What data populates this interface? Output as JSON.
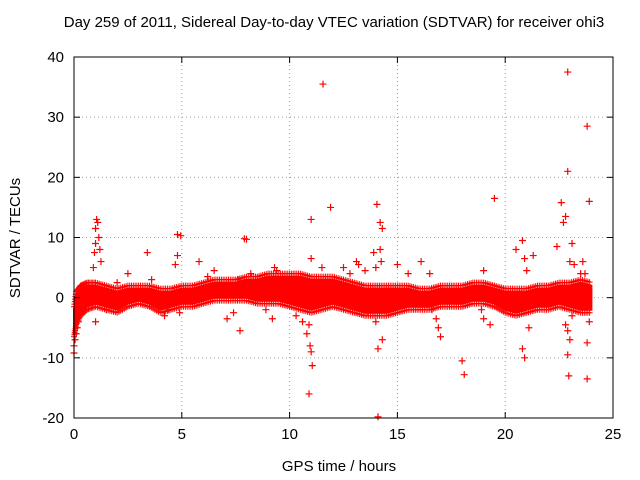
{
  "colors": {
    "series": "#ff0000",
    "axis": "#000000",
    "grid": "#a0a0a0",
    "background": "#ffffff"
  },
  "chart_data": {
    "type": "scatter",
    "title": "Day 259 of 2011, Sidereal Day-to-day VTEC variation (SDTVAR) for receiver ohi3",
    "xlabel": "GPS time / hours",
    "ylabel": "SDTVAR / TECUs",
    "xlim": [
      0,
      25
    ],
    "ylim": [
      -20,
      40
    ],
    "xticks": [
      0,
      5,
      10,
      15,
      20,
      25
    ],
    "yticks": [
      -20,
      -10,
      0,
      10,
      20,
      30,
      40
    ],
    "grid": true,
    "marker": "+",
    "series": [
      {
        "name": "SDTVAR",
        "band": {
          "x": [
            0.0,
            0.1,
            0.3,
            0.6,
            1.0,
            1.5,
            2.0,
            2.5,
            3.0,
            3.5,
            4.0,
            4.5,
            5.0,
            5.5,
            6.0,
            6.5,
            7.0,
            7.5,
            8.0,
            8.5,
            9.0,
            9.5,
            10.0,
            10.5,
            11.0,
            11.5,
            12.0,
            12.5,
            13.0,
            13.5,
            14.0,
            14.5,
            15.0,
            15.5,
            16.0,
            16.5,
            17.0,
            17.5,
            18.0,
            18.5,
            19.0,
            19.5,
            20.0,
            20.5,
            21.0,
            21.5,
            22.0,
            22.5,
            23.0,
            23.5,
            24.0
          ],
          "lower": [
            -6.0,
            -4.0,
            -2.5,
            -1.5,
            -1.0,
            -1.5,
            -2.0,
            -1.0,
            -0.5,
            -1.0,
            -2.0,
            -1.5,
            -1.0,
            -1.0,
            -0.5,
            0.0,
            0.0,
            0.0,
            0.0,
            -0.5,
            -0.5,
            -0.5,
            -1.0,
            -1.5,
            -2.0,
            -1.5,
            -1.0,
            -1.5,
            -2.0,
            -2.5,
            -2.5,
            -2.5,
            -2.0,
            -1.5,
            -1.5,
            -1.5,
            -1.0,
            -1.0,
            -1.0,
            -0.5,
            -0.5,
            -1.0,
            -2.0,
            -2.5,
            -2.0,
            -1.5,
            -1.5,
            -1.0,
            -1.5,
            -2.0,
            -2.0
          ],
          "upper": [
            -2.0,
            0.5,
            1.5,
            2.0,
            2.0,
            1.5,
            1.0,
            1.5,
            1.5,
            1.5,
            1.0,
            1.0,
            1.5,
            1.5,
            2.0,
            2.5,
            2.5,
            2.5,
            3.0,
            3.0,
            3.5,
            3.5,
            3.5,
            3.5,
            3.0,
            3.0,
            3.0,
            2.5,
            2.0,
            1.5,
            1.5,
            1.5,
            1.5,
            1.5,
            1.0,
            1.0,
            1.5,
            1.5,
            1.5,
            2.0,
            2.0,
            1.5,
            1.0,
            1.0,
            1.0,
            1.5,
            1.5,
            2.0,
            2.0,
            2.5,
            2.0
          ]
        },
        "points": [
          [
            0.0,
            -9.2
          ],
          [
            0.0,
            -8.0
          ],
          [
            0.05,
            -7.0
          ],
          [
            0.1,
            -6.0
          ],
          [
            0.15,
            -5.0
          ],
          [
            0.2,
            -4.0
          ],
          [
            0.9,
            5.0
          ],
          [
            0.95,
            7.5
          ],
          [
            1.0,
            9.0
          ],
          [
            1.0,
            11.5
          ],
          [
            1.05,
            13.0
          ],
          [
            1.1,
            12.5
          ],
          [
            1.15,
            10.0
          ],
          [
            1.2,
            8.0
          ],
          [
            1.25,
            6.0
          ],
          [
            1.0,
            -4.0
          ],
          [
            1.5,
            -2.0
          ],
          [
            2.0,
            2.5
          ],
          [
            2.5,
            4.0
          ],
          [
            3.4,
            7.5
          ],
          [
            3.6,
            3.0
          ],
          [
            4.2,
            -3.0
          ],
          [
            4.4,
            -2.0
          ],
          [
            4.7,
            5.5
          ],
          [
            4.8,
            7.0
          ],
          [
            4.8,
            10.5
          ],
          [
            4.95,
            10.3
          ],
          [
            4.9,
            -2.5
          ],
          [
            5.8,
            6.0
          ],
          [
            6.2,
            3.5
          ],
          [
            6.5,
            4.5
          ],
          [
            7.1,
            -3.5
          ],
          [
            7.4,
            -2.5
          ],
          [
            7.6,
            3.0
          ],
          [
            7.7,
            -5.5
          ],
          [
            7.9,
            9.8
          ],
          [
            8.0,
            9.7
          ],
          [
            8.2,
            4.0
          ],
          [
            8.5,
            2.8
          ],
          [
            8.9,
            -2.0
          ],
          [
            9.2,
            -3.5
          ],
          [
            9.3,
            5.0
          ],
          [
            9.4,
            4.5
          ],
          [
            10.3,
            -3.0
          ],
          [
            10.6,
            -4.0
          ],
          [
            10.8,
            -6.0
          ],
          [
            10.9,
            -4.5
          ],
          [
            11.0,
            13.0
          ],
          [
            10.95,
            -8.0
          ],
          [
            11.0,
            -9.0
          ],
          [
            11.05,
            -11.3
          ],
          [
            10.9,
            -16.0
          ],
          [
            11.0,
            6.5
          ],
          [
            11.5,
            5.0
          ],
          [
            11.55,
            35.5
          ],
          [
            11.7,
            2.0
          ],
          [
            11.9,
            15.0
          ],
          [
            12.5,
            5.0
          ],
          [
            12.8,
            4.0
          ],
          [
            13.1,
            6.0
          ],
          [
            13.2,
            5.5
          ],
          [
            13.5,
            4.5
          ],
          [
            13.6,
            -2.5
          ],
          [
            13.9,
            7.5
          ],
          [
            14.0,
            5.0
          ],
          [
            14.05,
            15.5
          ],
          [
            14.0,
            -4.0
          ],
          [
            14.1,
            -8.5
          ],
          [
            14.2,
            12.5
          ],
          [
            14.3,
            -7.0
          ],
          [
            14.2,
            8.0
          ],
          [
            14.3,
            11.5
          ],
          [
            14.25,
            6.0
          ],
          [
            14.1,
            -19.8
          ],
          [
            15.0,
            5.5
          ],
          [
            15.5,
            4.0
          ],
          [
            16.1,
            6.0
          ],
          [
            16.5,
            4.0
          ],
          [
            16.6,
            -2.0
          ],
          [
            16.8,
            -3.5
          ],
          [
            16.9,
            -5.0
          ],
          [
            17.0,
            -6.5
          ],
          [
            18.0,
            -10.5
          ],
          [
            18.1,
            -12.8
          ],
          [
            18.9,
            -2.0
          ],
          [
            19.0,
            -3.5
          ],
          [
            19.3,
            -4.5
          ],
          [
            19.5,
            16.5
          ],
          [
            19.0,
            4.5
          ],
          [
            20.5,
            8.0
          ],
          [
            20.8,
            9.5
          ],
          [
            20.9,
            6.5
          ],
          [
            21.0,
            4.5
          ],
          [
            20.8,
            -8.5
          ],
          [
            20.9,
            -10.0
          ],
          [
            21.3,
            7.0
          ],
          [
            21.1,
            -5.0
          ],
          [
            22.4,
            8.5
          ],
          [
            22.6,
            15.8
          ],
          [
            22.7,
            12.5
          ],
          [
            22.8,
            13.5
          ],
          [
            22.9,
            21.0
          ],
          [
            22.9,
            37.5
          ],
          [
            23.0,
            6.0
          ],
          [
            23.1,
            9.0
          ],
          [
            23.2,
            5.5
          ],
          [
            22.8,
            -4.5
          ],
          [
            22.9,
            -5.5
          ],
          [
            22.9,
            -9.5
          ],
          [
            22.95,
            -13.0
          ],
          [
            23.0,
            -7.0
          ],
          [
            23.1,
            -3.0
          ],
          [
            23.5,
            4.0
          ],
          [
            23.6,
            6.0
          ],
          [
            23.7,
            4.0
          ],
          [
            23.8,
            28.5
          ],
          [
            23.9,
            16.0
          ],
          [
            23.8,
            -7.5
          ],
          [
            23.8,
            -13.5
          ],
          [
            23.9,
            -4.0
          ]
        ]
      }
    ]
  }
}
